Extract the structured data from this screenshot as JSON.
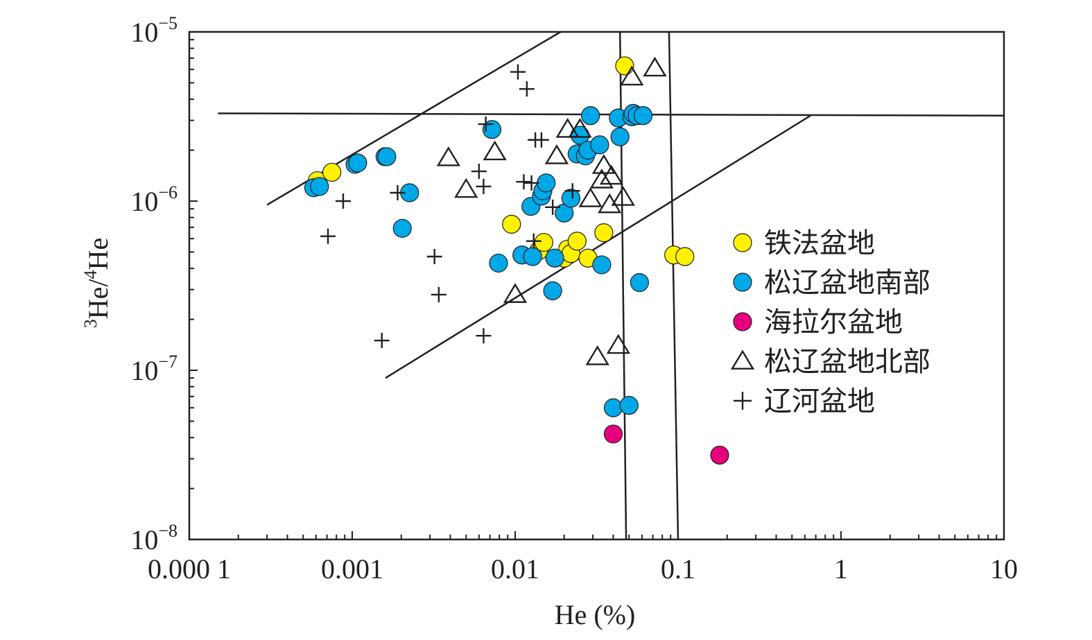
{
  "chart_data": {
    "type": "scatter",
    "xlabel": "He (%)",
    "ylabel_sup": "3",
    "ylabel_mid": "He/",
    "ylabel_sup2": "4",
    "ylabel_end": "He",
    "x_scale": "log",
    "y_scale": "log",
    "xlim": [
      0.0001,
      10
    ],
    "ylim": [
      1e-08,
      1e-05
    ],
    "x_ticks": [
      {
        "value": 0.0001,
        "label": "0.000 1"
      },
      {
        "value": 0.001,
        "label": "0.001"
      },
      {
        "value": 0.01,
        "label": "0.01"
      },
      {
        "value": 0.1,
        "label": "0.1"
      },
      {
        "value": 1,
        "label": "1"
      },
      {
        "value": 10,
        "label": "10"
      }
    ],
    "y_ticks": [
      {
        "value": 1e-05,
        "base": "10",
        "exp": "−5"
      },
      {
        "value": 1e-06,
        "base": "10",
        "exp": "−6"
      },
      {
        "value": 1e-07,
        "base": "10",
        "exp": "−7"
      },
      {
        "value": 1e-08,
        "base": "10",
        "exp": "−8"
      }
    ],
    "grid": false,
    "legend_position": "right",
    "reference_lines": [
      {
        "x": [
          0.0003,
          0.019
        ],
        "y": [
          9.5e-07,
          1e-05
        ]
      },
      {
        "x": [
          0.00015,
          10
        ],
        "y": [
          3.3e-06,
          3.2e-06
        ]
      },
      {
        "x": [
          0.0016,
          0.65
        ],
        "y": [
          9e-08,
          3.2e-06
        ]
      },
      {
        "x": [
          0.044,
          0.048
        ],
        "y": [
          1e-05,
          1e-08
        ]
      },
      {
        "x": [
          0.088,
          0.1
        ],
        "y": [
          1e-05,
          1e-08
        ]
      }
    ],
    "series": [
      {
        "name": "铁法盆地",
        "marker": "circle",
        "color": "#fff200",
        "points": [
          {
            "x": 0.00061,
            "y": 1.32e-06
          },
          {
            "x": 0.00075,
            "y": 1.48e-06
          },
          {
            "x": 0.0095,
            "y": 7.3e-07
          },
          {
            "x": 0.014,
            "y": 5.1e-07
          },
          {
            "x": 0.015,
            "y": 5.7e-07
          },
          {
            "x": 0.02,
            "y": 4.6e-07
          },
          {
            "x": 0.021,
            "y": 5.2e-07
          },
          {
            "x": 0.022,
            "y": 4.9e-07
          },
          {
            "x": 0.024,
            "y": 5.8e-07
          },
          {
            "x": 0.028,
            "y": 4.6e-07
          },
          {
            "x": 0.035,
            "y": 6.5e-07
          },
          {
            "x": 0.047,
            "y": 6.3e-06
          },
          {
            "x": 0.094,
            "y": 4.8e-07
          },
          {
            "x": 0.11,
            "y": 4.7e-07
          }
        ]
      },
      {
        "name": "松辽盆地南部",
        "marker": "circle",
        "color": "#00a8e8",
        "points": [
          {
            "x": 0.00058,
            "y": 1.2e-06
          },
          {
            "x": 0.00063,
            "y": 1.22e-06
          },
          {
            "x": 0.00104,
            "y": 1.65e-06
          },
          {
            "x": 0.00108,
            "y": 1.68e-06
          },
          {
            "x": 0.00159,
            "y": 1.83e-06
          },
          {
            "x": 0.00163,
            "y": 1.83e-06
          },
          {
            "x": 0.00203,
            "y": 6.9e-07
          },
          {
            "x": 0.00225,
            "y": 1.12e-06
          },
          {
            "x": 0.0072,
            "y": 2.65e-06
          },
          {
            "x": 0.0079,
            "y": 4.3e-07
          },
          {
            "x": 0.011,
            "y": 4.8e-07
          },
          {
            "x": 0.0125,
            "y": 9.3e-07
          },
          {
            "x": 0.0128,
            "y": 4.7e-07
          },
          {
            "x": 0.0145,
            "y": 1.07e-06
          },
          {
            "x": 0.0148,
            "y": 1.15e-06
          },
          {
            "x": 0.0155,
            "y": 1.28e-06
          },
          {
            "x": 0.017,
            "y": 2.95e-07
          },
          {
            "x": 0.0175,
            "y": 4.6e-07
          },
          {
            "x": 0.02,
            "y": 8.5e-07
          },
          {
            "x": 0.022,
            "y": 1.04e-06
          },
          {
            "x": 0.024,
            "y": 1.9e-06
          },
          {
            "x": 0.025,
            "y": 2.45e-06
          },
          {
            "x": 0.027,
            "y": 1.85e-06
          },
          {
            "x": 0.028,
            "y": 2e-06
          },
          {
            "x": 0.029,
            "y": 3.2e-06
          },
          {
            "x": 0.033,
            "y": 2.15e-06
          },
          {
            "x": 0.034,
            "y": 4.2e-07
          },
          {
            "x": 0.04,
            "y": 6e-08
          },
          {
            "x": 0.043,
            "y": 3.1e-06
          },
          {
            "x": 0.044,
            "y": 2.4e-06
          },
          {
            "x": 0.05,
            "y": 6.2e-08
          },
          {
            "x": 0.052,
            "y": 3.15e-06
          },
          {
            "x": 0.053,
            "y": 3.3e-06
          },
          {
            "x": 0.056,
            "y": 3.2e-06
          },
          {
            "x": 0.058,
            "y": 3.3e-07
          },
          {
            "x": 0.061,
            "y": 3.2e-06
          }
        ]
      },
      {
        "name": "海拉尔盆地",
        "marker": "circle",
        "color": "#e6007e",
        "points": [
          {
            "x": 0.04,
            "y": 4.2e-08
          },
          {
            "x": 0.18,
            "y": 3.15e-08
          }
        ]
      },
      {
        "name": "松辽盆地北部",
        "marker": "triangle",
        "color": "#231f20",
        "points": [
          {
            "x": 0.0039,
            "y": 1.8e-06
          },
          {
            "x": 0.005,
            "y": 1.17e-06
          },
          {
            "x": 0.0075,
            "y": 1.95e-06
          },
          {
            "x": 0.01,
            "y": 2.8e-07
          },
          {
            "x": 0.018,
            "y": 1.85e-06
          },
          {
            "x": 0.021,
            "y": 2.65e-06
          },
          {
            "x": 0.025,
            "y": 2.65e-06
          },
          {
            "x": 0.029,
            "y": 1.03e-06
          },
          {
            "x": 0.032,
            "y": 1.2e-07
          },
          {
            "x": 0.034,
            "y": 1.33e-06
          },
          {
            "x": 0.035,
            "y": 1.62e-06
          },
          {
            "x": 0.038,
            "y": 9.5e-07
          },
          {
            "x": 0.039,
            "y": 1.4e-06
          },
          {
            "x": 0.043,
            "y": 1.4e-07
          },
          {
            "x": 0.046,
            "y": 1.05e-06
          },
          {
            "x": 0.052,
            "y": 5.4e-06
          },
          {
            "x": 0.072,
            "y": 6.1e-06
          }
        ]
      },
      {
        "name": "辽河盆地",
        "marker": "plus",
        "color": "#231f20",
        "points": [
          {
            "x": 0.00071,
            "y": 6.2e-07
          },
          {
            "x": 0.00088,
            "y": 1e-06
          },
          {
            "x": 0.00152,
            "y": 1.5e-07
          },
          {
            "x": 0.0019,
            "y": 1.12e-06
          },
          {
            "x": 0.0032,
            "y": 4.7e-07
          },
          {
            "x": 0.0034,
            "y": 2.8e-07
          },
          {
            "x": 0.006,
            "y": 1.5e-06
          },
          {
            "x": 0.0064,
            "y": 1.22e-06
          },
          {
            "x": 0.0064,
            "y": 1.6e-07
          },
          {
            "x": 0.0066,
            "y": 2.85e-06
          },
          {
            "x": 0.0104,
            "y": 5.8e-06
          },
          {
            "x": 0.0113,
            "y": 1.3e-06
          },
          {
            "x": 0.0118,
            "y": 4.6e-06
          },
          {
            "x": 0.0126,
            "y": 1.28e-06
          },
          {
            "x": 0.013,
            "y": 5.8e-07
          },
          {
            "x": 0.0133,
            "y": 2.3e-06
          },
          {
            "x": 0.0145,
            "y": 2.3e-06
          },
          {
            "x": 0.017,
            "y": 9.2e-07
          },
          {
            "x": 0.0225,
            "y": 1.15e-06
          }
        ]
      }
    ]
  }
}
